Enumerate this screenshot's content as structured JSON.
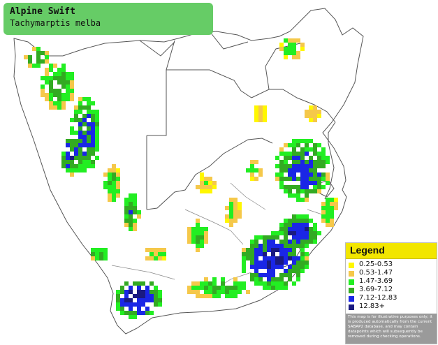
{
  "species": {
    "common_name": "Alpine Swift",
    "scientific_name": "Tachymarptis melba"
  },
  "legend": {
    "title": "Legend",
    "items": [
      {
        "label": "0.25-0.53",
        "color": "#fff700"
      },
      {
        "label": "0.53-1.47",
        "color": "#f5c84a"
      },
      {
        "label": "1.47-3.69",
        "color": "#22ee22"
      },
      {
        "label": "3.69-7.12",
        "color": "#33aa22"
      },
      {
        "label": "7.12-12.83",
        "color": "#1a26e6"
      },
      {
        "label": "12.83+",
        "color": "#1a1a80"
      }
    ],
    "disclaimer": "This map is for illustrative purposes only; it is produced automatically from the current SABAP2 database, and may contain datapoints which will subsequently be removed during checking operations."
  },
  "map": {
    "background": "#ffffff",
    "border_color": "#555555"
  }
}
